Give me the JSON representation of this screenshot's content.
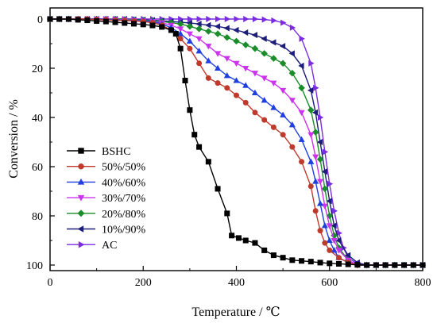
{
  "chart_data": {
    "type": "line",
    "title": "",
    "xlabel": "Temperature / ℃",
    "ylabel": "Conversion / %",
    "xlim": [
      0,
      800
    ],
    "ylim": [
      0,
      100
    ],
    "y_inverted": true,
    "grid": false,
    "legend_position": "lower-left",
    "x_ticks": [
      "0",
      "200",
      "400",
      "600",
      "800"
    ],
    "y_ticks": [
      "0",
      "20",
      "40",
      "60",
      "80",
      "100"
    ],
    "series": [
      {
        "name": "BSHC",
        "color": "#000000",
        "marker": "square",
        "points": [
          [
            0,
            0
          ],
          [
            20,
            0
          ],
          [
            40,
            0
          ],
          [
            60,
            0.3
          ],
          [
            80,
            0.5
          ],
          [
            100,
            0.8
          ],
          [
            120,
            1.0
          ],
          [
            140,
            1.3
          ],
          [
            160,
            1.6
          ],
          [
            180,
            1.9
          ],
          [
            200,
            2.2
          ],
          [
            220,
            2.6
          ],
          [
            240,
            3.2
          ],
          [
            260,
            4.5
          ],
          [
            270,
            6
          ],
          [
            280,
            12
          ],
          [
            290,
            25
          ],
          [
            300,
            37
          ],
          [
            310,
            47
          ],
          [
            320,
            52
          ],
          [
            340,
            58
          ],
          [
            360,
            69
          ],
          [
            380,
            79
          ],
          [
            390,
            88
          ],
          [
            405,
            89
          ],
          [
            420,
            90
          ],
          [
            440,
            91
          ],
          [
            460,
            94
          ],
          [
            480,
            96
          ],
          [
            500,
            97
          ],
          [
            520,
            98
          ],
          [
            540,
            98.3
          ],
          [
            560,
            98.6
          ],
          [
            580,
            99
          ],
          [
            600,
            99.3
          ],
          [
            620,
            99.5
          ],
          [
            640,
            99.7
          ],
          [
            660,
            99.9
          ],
          [
            680,
            100
          ],
          [
            700,
            100
          ],
          [
            720,
            100
          ],
          [
            740,
            100
          ],
          [
            760,
            100
          ],
          [
            780,
            100
          ],
          [
            800,
            100
          ]
        ]
      },
      {
        "name": "50%/50%",
        "color": "#c0392b",
        "marker": "circle",
        "points": [
          [
            0,
            0
          ],
          [
            20,
            0
          ],
          [
            40,
            0
          ],
          [
            60,
            0
          ],
          [
            80,
            0
          ],
          [
            100,
            0.2
          ],
          [
            120,
            0.3
          ],
          [
            140,
            0.5
          ],
          [
            160,
            0.6
          ],
          [
            180,
            0.8
          ],
          [
            200,
            1
          ],
          [
            220,
            1.5
          ],
          [
            240,
            2.5
          ],
          [
            260,
            4.5
          ],
          [
            280,
            8
          ],
          [
            300,
            12
          ],
          [
            320,
            18
          ],
          [
            340,
            24
          ],
          [
            360,
            26
          ],
          [
            380,
            28
          ],
          [
            400,
            31
          ],
          [
            420,
            34
          ],
          [
            440,
            38
          ],
          [
            460,
            41
          ],
          [
            480,
            44
          ],
          [
            500,
            47
          ],
          [
            520,
            52
          ],
          [
            540,
            58
          ],
          [
            560,
            68
          ],
          [
            570,
            78
          ],
          [
            580,
            86
          ],
          [
            590,
            91
          ],
          [
            600,
            94
          ],
          [
            620,
            97
          ],
          [
            640,
            99
          ],
          [
            660,
            100
          ],
          [
            680,
            100
          ],
          [
            700,
            100
          ],
          [
            720,
            100
          ],
          [
            740,
            100
          ],
          [
            760,
            100
          ],
          [
            780,
            100
          ],
          [
            800,
            100
          ]
        ]
      },
      {
        "name": "40%/60%",
        "color": "#1f3fe0",
        "marker": "triangle-up",
        "points": [
          [
            0,
            0
          ],
          [
            20,
            0
          ],
          [
            40,
            0
          ],
          [
            60,
            0
          ],
          [
            80,
            0
          ],
          [
            100,
            0
          ],
          [
            120,
            0.2
          ],
          [
            140,
            0.3
          ],
          [
            160,
            0.5
          ],
          [
            180,
            0.6
          ],
          [
            200,
            0.8
          ],
          [
            220,
            1
          ],
          [
            240,
            2
          ],
          [
            260,
            3.5
          ],
          [
            280,
            6
          ],
          [
            300,
            9
          ],
          [
            320,
            13
          ],
          [
            340,
            17
          ],
          [
            360,
            20
          ],
          [
            380,
            23
          ],
          [
            400,
            25
          ],
          [
            420,
            27
          ],
          [
            440,
            30
          ],
          [
            460,
            33
          ],
          [
            480,
            36
          ],
          [
            500,
            39
          ],
          [
            520,
            43
          ],
          [
            540,
            49
          ],
          [
            560,
            58
          ],
          [
            570,
            66
          ],
          [
            580,
            75
          ],
          [
            590,
            84
          ],
          [
            600,
            90
          ],
          [
            610,
            94
          ],
          [
            620,
            97
          ],
          [
            640,
            99
          ],
          [
            660,
            100
          ],
          [
            680,
            100
          ],
          [
            700,
            100
          ],
          [
            720,
            100
          ],
          [
            740,
            100
          ],
          [
            760,
            100
          ],
          [
            780,
            100
          ],
          [
            800,
            100
          ]
        ]
      },
      {
        "name": "30%/70%",
        "color": "#cc33ee",
        "marker": "triangle-down",
        "points": [
          [
            0,
            0
          ],
          [
            20,
            0
          ],
          [
            40,
            0
          ],
          [
            60,
            0
          ],
          [
            80,
            0
          ],
          [
            100,
            0
          ],
          [
            120,
            0
          ],
          [
            140,
            0.2
          ],
          [
            160,
            0.3
          ],
          [
            180,
            0.5
          ],
          [
            200,
            0.7
          ],
          [
            220,
            1
          ],
          [
            240,
            1.5
          ],
          [
            260,
            2.5
          ],
          [
            280,
            4
          ],
          [
            300,
            6
          ],
          [
            320,
            8
          ],
          [
            340,
            11
          ],
          [
            360,
            14
          ],
          [
            380,
            16
          ],
          [
            400,
            18
          ],
          [
            420,
            20
          ],
          [
            440,
            22
          ],
          [
            460,
            24
          ],
          [
            480,
            26
          ],
          [
            500,
            29
          ],
          [
            520,
            33
          ],
          [
            540,
            38
          ],
          [
            560,
            47
          ],
          [
            570,
            56
          ],
          [
            580,
            66
          ],
          [
            590,
            76
          ],
          [
            600,
            84
          ],
          [
            610,
            90
          ],
          [
            620,
            94
          ],
          [
            640,
            98
          ],
          [
            660,
            100
          ],
          [
            680,
            100
          ],
          [
            700,
            100
          ],
          [
            720,
            100
          ],
          [
            740,
            100
          ],
          [
            760,
            100
          ],
          [
            780,
            100
          ],
          [
            800,
            100
          ]
        ]
      },
      {
        "name": "20%/80%",
        "color": "#1a8c2a",
        "marker": "diamond",
        "points": [
          [
            0,
            0
          ],
          [
            20,
            0
          ],
          [
            40,
            0
          ],
          [
            60,
            0
          ],
          [
            80,
            0
          ],
          [
            100,
            0
          ],
          [
            120,
            0
          ],
          [
            140,
            0
          ],
          [
            160,
            0.2
          ],
          [
            180,
            0.3
          ],
          [
            200,
            0.5
          ],
          [
            220,
            0.7
          ],
          [
            240,
            1
          ],
          [
            260,
            1.5
          ],
          [
            280,
            2
          ],
          [
            300,
            3
          ],
          [
            320,
            4
          ],
          [
            340,
            5
          ],
          [
            360,
            6
          ],
          [
            380,
            7.5
          ],
          [
            400,
            9
          ],
          [
            420,
            10.5
          ],
          [
            440,
            12
          ],
          [
            460,
            14
          ],
          [
            480,
            16
          ],
          [
            500,
            18
          ],
          [
            520,
            22
          ],
          [
            540,
            28
          ],
          [
            560,
            37
          ],
          [
            570,
            46
          ],
          [
            580,
            57
          ],
          [
            590,
            69
          ],
          [
            600,
            80
          ],
          [
            610,
            88
          ],
          [
            620,
            93
          ],
          [
            640,
            98
          ],
          [
            660,
            100
          ],
          [
            680,
            100
          ],
          [
            700,
            100
          ],
          [
            720,
            100
          ],
          [
            740,
            100
          ],
          [
            760,
            100
          ],
          [
            780,
            100
          ],
          [
            800,
            100
          ]
        ]
      },
      {
        "name": "10%/90%",
        "color": "#1c1c7a",
        "marker": "triangle-left",
        "points": [
          [
            0,
            0
          ],
          [
            20,
            0
          ],
          [
            40,
            0
          ],
          [
            60,
            0
          ],
          [
            80,
            0
          ],
          [
            100,
            0
          ],
          [
            120,
            0
          ],
          [
            140,
            0
          ],
          [
            160,
            0
          ],
          [
            180,
            0.2
          ],
          [
            200,
            0.3
          ],
          [
            220,
            0.5
          ],
          [
            240,
            0.7
          ],
          [
            260,
            1
          ],
          [
            280,
            1.3
          ],
          [
            300,
            1.6
          ],
          [
            320,
            2
          ],
          [
            340,
            2.5
          ],
          [
            360,
            3
          ],
          [
            380,
            3.7
          ],
          [
            400,
            4.5
          ],
          [
            420,
            5.5
          ],
          [
            440,
            6.5
          ],
          [
            460,
            8
          ],
          [
            480,
            9.5
          ],
          [
            500,
            11
          ],
          [
            520,
            14
          ],
          [
            540,
            19
          ],
          [
            560,
            29
          ],
          [
            570,
            38
          ],
          [
            580,
            50
          ],
          [
            590,
            62
          ],
          [
            600,
            74
          ],
          [
            610,
            84
          ],
          [
            620,
            90
          ],
          [
            640,
            96
          ],
          [
            660,
            99
          ],
          [
            680,
            100
          ],
          [
            700,
            100
          ],
          [
            720,
            100
          ],
          [
            740,
            100
          ],
          [
            760,
            100
          ],
          [
            780,
            100
          ],
          [
            800,
            100
          ]
        ]
      },
      {
        "name": "AC",
        "color": "#7b2be0",
        "marker": "triangle-right",
        "points": [
          [
            0,
            0
          ],
          [
            20,
            0
          ],
          [
            40,
            0
          ],
          [
            60,
            0
          ],
          [
            80,
            0
          ],
          [
            100,
            0
          ],
          [
            120,
            0
          ],
          [
            140,
            0
          ],
          [
            160,
            0
          ],
          [
            180,
            0
          ],
          [
            200,
            0
          ],
          [
            220,
            0
          ],
          [
            240,
            0
          ],
          [
            260,
            0
          ],
          [
            280,
            0
          ],
          [
            300,
            0
          ],
          [
            320,
            0
          ],
          [
            340,
            0
          ],
          [
            360,
            0
          ],
          [
            380,
            0
          ],
          [
            400,
            0
          ],
          [
            420,
            0
          ],
          [
            440,
            0
          ],
          [
            460,
            0.2
          ],
          [
            480,
            0.6
          ],
          [
            500,
            1.5
          ],
          [
            520,
            3.5
          ],
          [
            540,
            8
          ],
          [
            560,
            18
          ],
          [
            570,
            28
          ],
          [
            580,
            40
          ],
          [
            590,
            54
          ],
          [
            600,
            67
          ],
          [
            610,
            78
          ],
          [
            620,
            87
          ],
          [
            630,
            93
          ],
          [
            640,
            97
          ],
          [
            660,
            99.5
          ],
          [
            680,
            100
          ],
          [
            700,
            100
          ],
          [
            720,
            100
          ],
          [
            740,
            100
          ],
          [
            760,
            100
          ],
          [
            780,
            100
          ],
          [
            800,
            100
          ]
        ]
      }
    ]
  }
}
